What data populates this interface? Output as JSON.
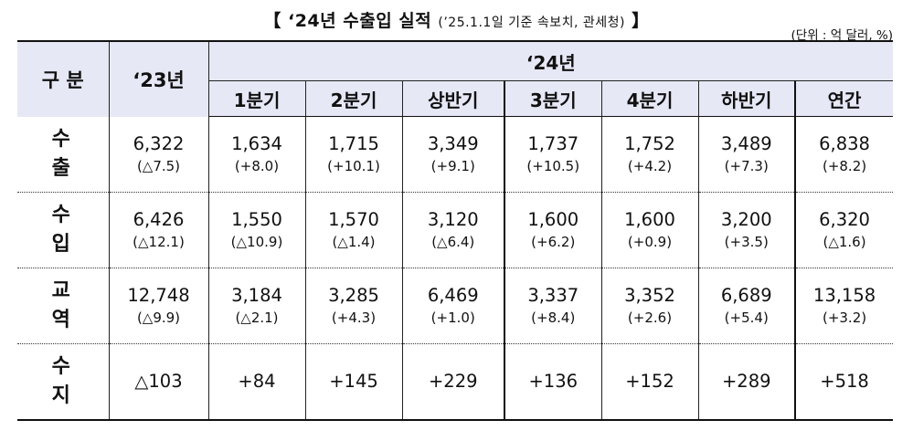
{
  "title": {
    "main": "【 ‘24년 수출입 실적 ",
    "sub": "(’25.1.1일 기준 속보치, 관세청)",
    "close": " 】"
  },
  "unit": "(단위 : 억 달러, %)",
  "header": {
    "gubun": "구 분",
    "prev_year": "‘23년",
    "year": "‘24년",
    "periods": [
      "1분기",
      "2분기",
      "상반기",
      "3분기",
      "4분기",
      "하반기",
      "연간"
    ]
  },
  "rows": [
    {
      "label": "수 출",
      "cells": [
        {
          "value": "6,322",
          "change": "(△7.5)"
        },
        {
          "value": "1,634",
          "change": "(+8.0)"
        },
        {
          "value": "1,715",
          "change": "(+10.1)"
        },
        {
          "value": "3,349",
          "change": "(+9.1)"
        },
        {
          "value": "1,737",
          "change": "(+10.5)"
        },
        {
          "value": "1,752",
          "change": "(+4.2)"
        },
        {
          "value": "3,489",
          "change": "(+7.3)"
        },
        {
          "value": "6,838",
          "change": "(+8.2)"
        }
      ]
    },
    {
      "label": "수 입",
      "cells": [
        {
          "value": "6,426",
          "change": "(△12.1)"
        },
        {
          "value": "1,550",
          "change": "(△10.9)"
        },
        {
          "value": "1,570",
          "change": "(△1.4)"
        },
        {
          "value": "3,120",
          "change": "(△6.4)"
        },
        {
          "value": "1,600",
          "change": "(+6.2)"
        },
        {
          "value": "1,600",
          "change": "(+0.9)"
        },
        {
          "value": "3,200",
          "change": "(+3.5)"
        },
        {
          "value": "6,320",
          "change": "(△1.6)"
        }
      ]
    },
    {
      "label": "교 역",
      "cells": [
        {
          "value": "12,748",
          "change": "(△9.9)"
        },
        {
          "value": "3,184",
          "change": "(△2.1)"
        },
        {
          "value": "3,285",
          "change": "(+4.3)"
        },
        {
          "value": "6,469",
          "change": "(+1.0)"
        },
        {
          "value": "3,337",
          "change": "(+8.4)"
        },
        {
          "value": "3,352",
          "change": "(+2.6)"
        },
        {
          "value": "6,689",
          "change": "(+5.4)"
        },
        {
          "value": "13,158",
          "change": "(+3.2)"
        }
      ]
    },
    {
      "label": "수 지",
      "cells": [
        {
          "value": "△103"
        },
        {
          "value": "+84"
        },
        {
          "value": "+145"
        },
        {
          "value": "+229"
        },
        {
          "value": "+136"
        },
        {
          "value": "+152"
        },
        {
          "value": "+289"
        },
        {
          "value": "+518"
        }
      ]
    }
  ]
}
